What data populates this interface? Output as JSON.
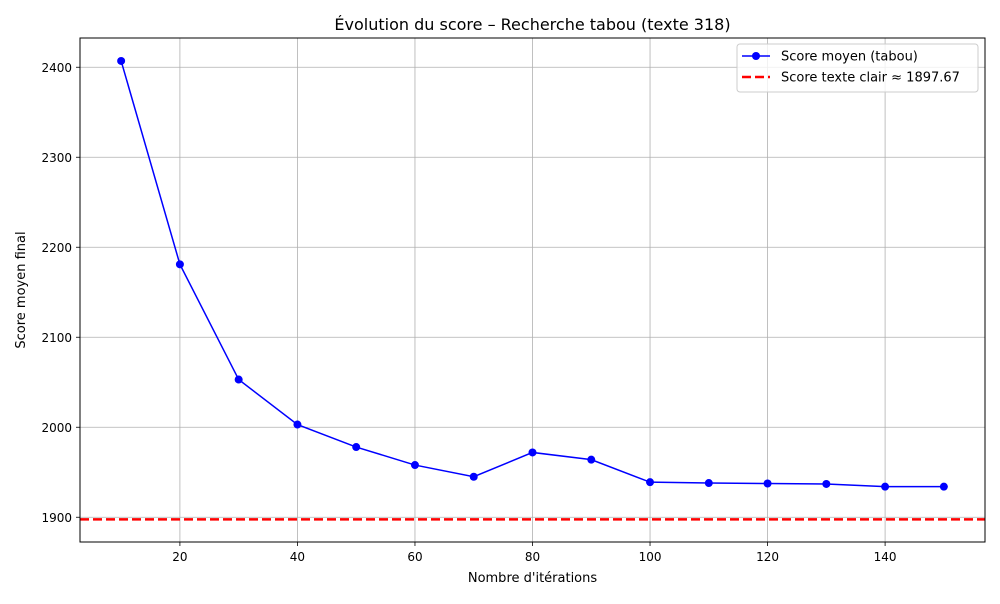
{
  "chart_data": {
    "type": "line",
    "title": "Évolution du score – Recherche tabou (texte 318)",
    "xlabel": "Nombre d'itérations",
    "ylabel": "Score moyen final",
    "xlim": [
      3,
      157
    ],
    "ylim": [
      1872.5,
      2432.5
    ],
    "x_ticks": [
      20,
      40,
      60,
      80,
      100,
      120,
      140
    ],
    "y_ticks": [
      1900,
      2000,
      2100,
      2200,
      2300,
      2400
    ],
    "grid": true,
    "legend_position": "top-right",
    "series": [
      {
        "name": "Score moyen (tabou)",
        "color": "#0000ff",
        "marker": "circle",
        "x": [
          10,
          20,
          30,
          40,
          50,
          60,
          70,
          80,
          90,
          100,
          110,
          120,
          130,
          140,
          150
        ],
        "values": [
          2407,
          2181,
          2053,
          2003,
          1978,
          1958,
          1945,
          1972,
          1964,
          1939,
          1938,
          1937.5,
          1937,
          1934,
          1934
        ]
      }
    ],
    "reference_lines": [
      {
        "name": "Score texte clair ≈ 1897.67",
        "value": 1897.67,
        "color": "#ff0000",
        "style": "dashed"
      }
    ]
  }
}
